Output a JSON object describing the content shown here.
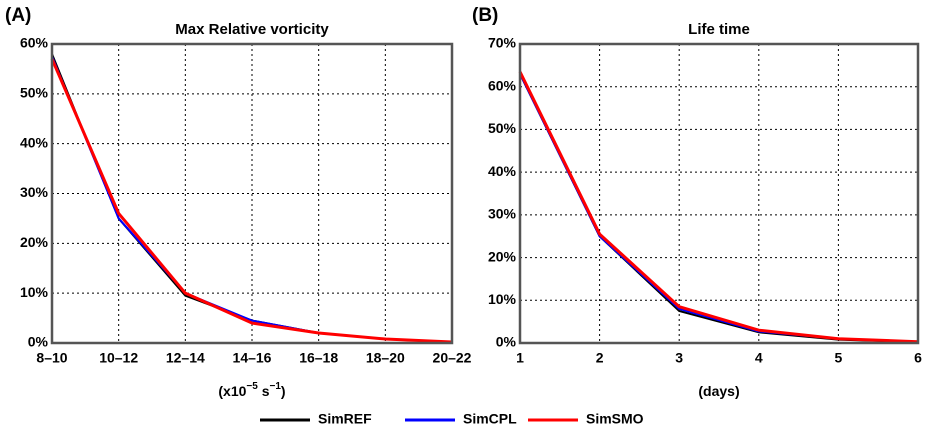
{
  "chart_data": [
    {
      "type": "line",
      "panel": "(A)",
      "title": "Max Relative vorticity",
      "xlabel": [
        "(x10",
        "−5",
        " s",
        "−1",
        ")"
      ],
      "categories": [
        "8–10",
        "10–12",
        "12–14",
        "14–16",
        "16–18",
        "18–20",
        "20–22"
      ],
      "ylim": [
        0,
        60
      ],
      "yticks": [
        {
          "value": 0,
          "label": "0%"
        },
        {
          "value": 10,
          "label": "10%"
        },
        {
          "value": 20,
          "label": "20%"
        },
        {
          "value": 30,
          "label": "30%"
        },
        {
          "value": 40,
          "label": "40%"
        },
        {
          "value": 50,
          "label": "50%"
        },
        {
          "value": 60,
          "label": "60%"
        }
      ],
      "grid": true,
      "series": [
        {
          "name": "SimREF",
          "color": "#000000",
          "values": [
            58,
            25,
            9.5,
            4.5,
            2,
            0.8,
            0.2
          ]
        },
        {
          "name": "SimCPL",
          "color": "#0000ff",
          "values": [
            57.5,
            25,
            10,
            4.5,
            2,
            0.8,
            0.2
          ]
        },
        {
          "name": "SimSMO",
          "color": "#ff0000",
          "values": [
            57,
            26,
            10,
            4,
            2,
            0.8,
            0.2
          ]
        }
      ]
    },
    {
      "type": "line",
      "panel": "(B)",
      "title": "Life time",
      "xlabel": [
        "(days)"
      ],
      "x": [
        1,
        2,
        3,
        4,
        5,
        6
      ],
      "xlim": [
        1,
        6
      ],
      "xticks": [
        1,
        2,
        3,
        4,
        5,
        6
      ],
      "ylim": [
        0,
        70
      ],
      "yticks": [
        {
          "value": 0,
          "label": "0%"
        },
        {
          "value": 10,
          "label": "10%"
        },
        {
          "value": 20,
          "label": "20%"
        },
        {
          "value": 30,
          "label": "30%"
        },
        {
          "value": 40,
          "label": "40%"
        },
        {
          "value": 50,
          "label": "50%"
        },
        {
          "value": 60,
          "label": "60%"
        },
        {
          "value": 70,
          "label": "70%"
        }
      ],
      "grid": true,
      "series": [
        {
          "color": "#000000",
          "values": [
            63,
            25,
            7.5,
            2.5,
            0.8,
            0.2
          ]
        },
        {
          "color": "#0000ff",
          "values": [
            63,
            25,
            8,
            2.7,
            1,
            0.3
          ]
        },
        {
          "color": "#ff0000",
          "values": [
            63.5,
            25.5,
            8.5,
            3,
            1,
            0.3
          ]
        }
      ]
    }
  ]
}
